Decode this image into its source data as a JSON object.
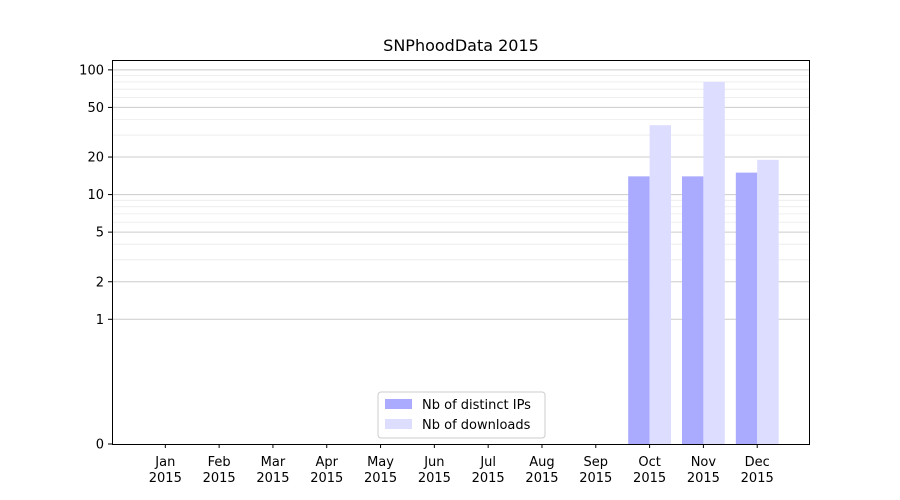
{
  "chart_data": {
    "type": "bar",
    "title": "SNPhoodData 2015",
    "xlabel": "",
    "ylabel": "",
    "y_scale": "symlog",
    "ylim": [
      0,
      120
    ],
    "y_ticks": [
      0,
      1,
      2,
      5,
      10,
      20,
      50,
      100
    ],
    "y_tick_labels": [
      "0",
      "1",
      "2",
      "5",
      "10",
      "20",
      "50",
      "100"
    ],
    "grid": "horizontal",
    "legend_position": "bottom-center",
    "categories": [
      "Jan\n2015",
      "Feb\n2015",
      "Mar\n2015",
      "Apr\n2015",
      "May\n2015",
      "Jun\n2015",
      "Jul\n2015",
      "Aug\n2015",
      "Sep\n2015",
      "Oct\n2015",
      "Nov\n2015",
      "Dec\n2015"
    ],
    "category_month": [
      "Jan",
      "Feb",
      "Mar",
      "Apr",
      "May",
      "Jun",
      "Jul",
      "Aug",
      "Sep",
      "Oct",
      "Nov",
      "Dec"
    ],
    "category_year": [
      "2015",
      "2015",
      "2015",
      "2015",
      "2015",
      "2015",
      "2015",
      "2015",
      "2015",
      "2015",
      "2015",
      "2015"
    ],
    "series": [
      {
        "name": "Nb of distinct IPs",
        "color": "#aaaaff",
        "values": [
          0,
          0,
          0,
          0,
          0,
          0,
          0,
          0,
          0,
          14,
          14,
          15
        ]
      },
      {
        "name": "Nb of downloads",
        "color": "#ddddff",
        "values": [
          0,
          0,
          0,
          0,
          0,
          0,
          0,
          0,
          0,
          36,
          80,
          19
        ]
      }
    ]
  }
}
